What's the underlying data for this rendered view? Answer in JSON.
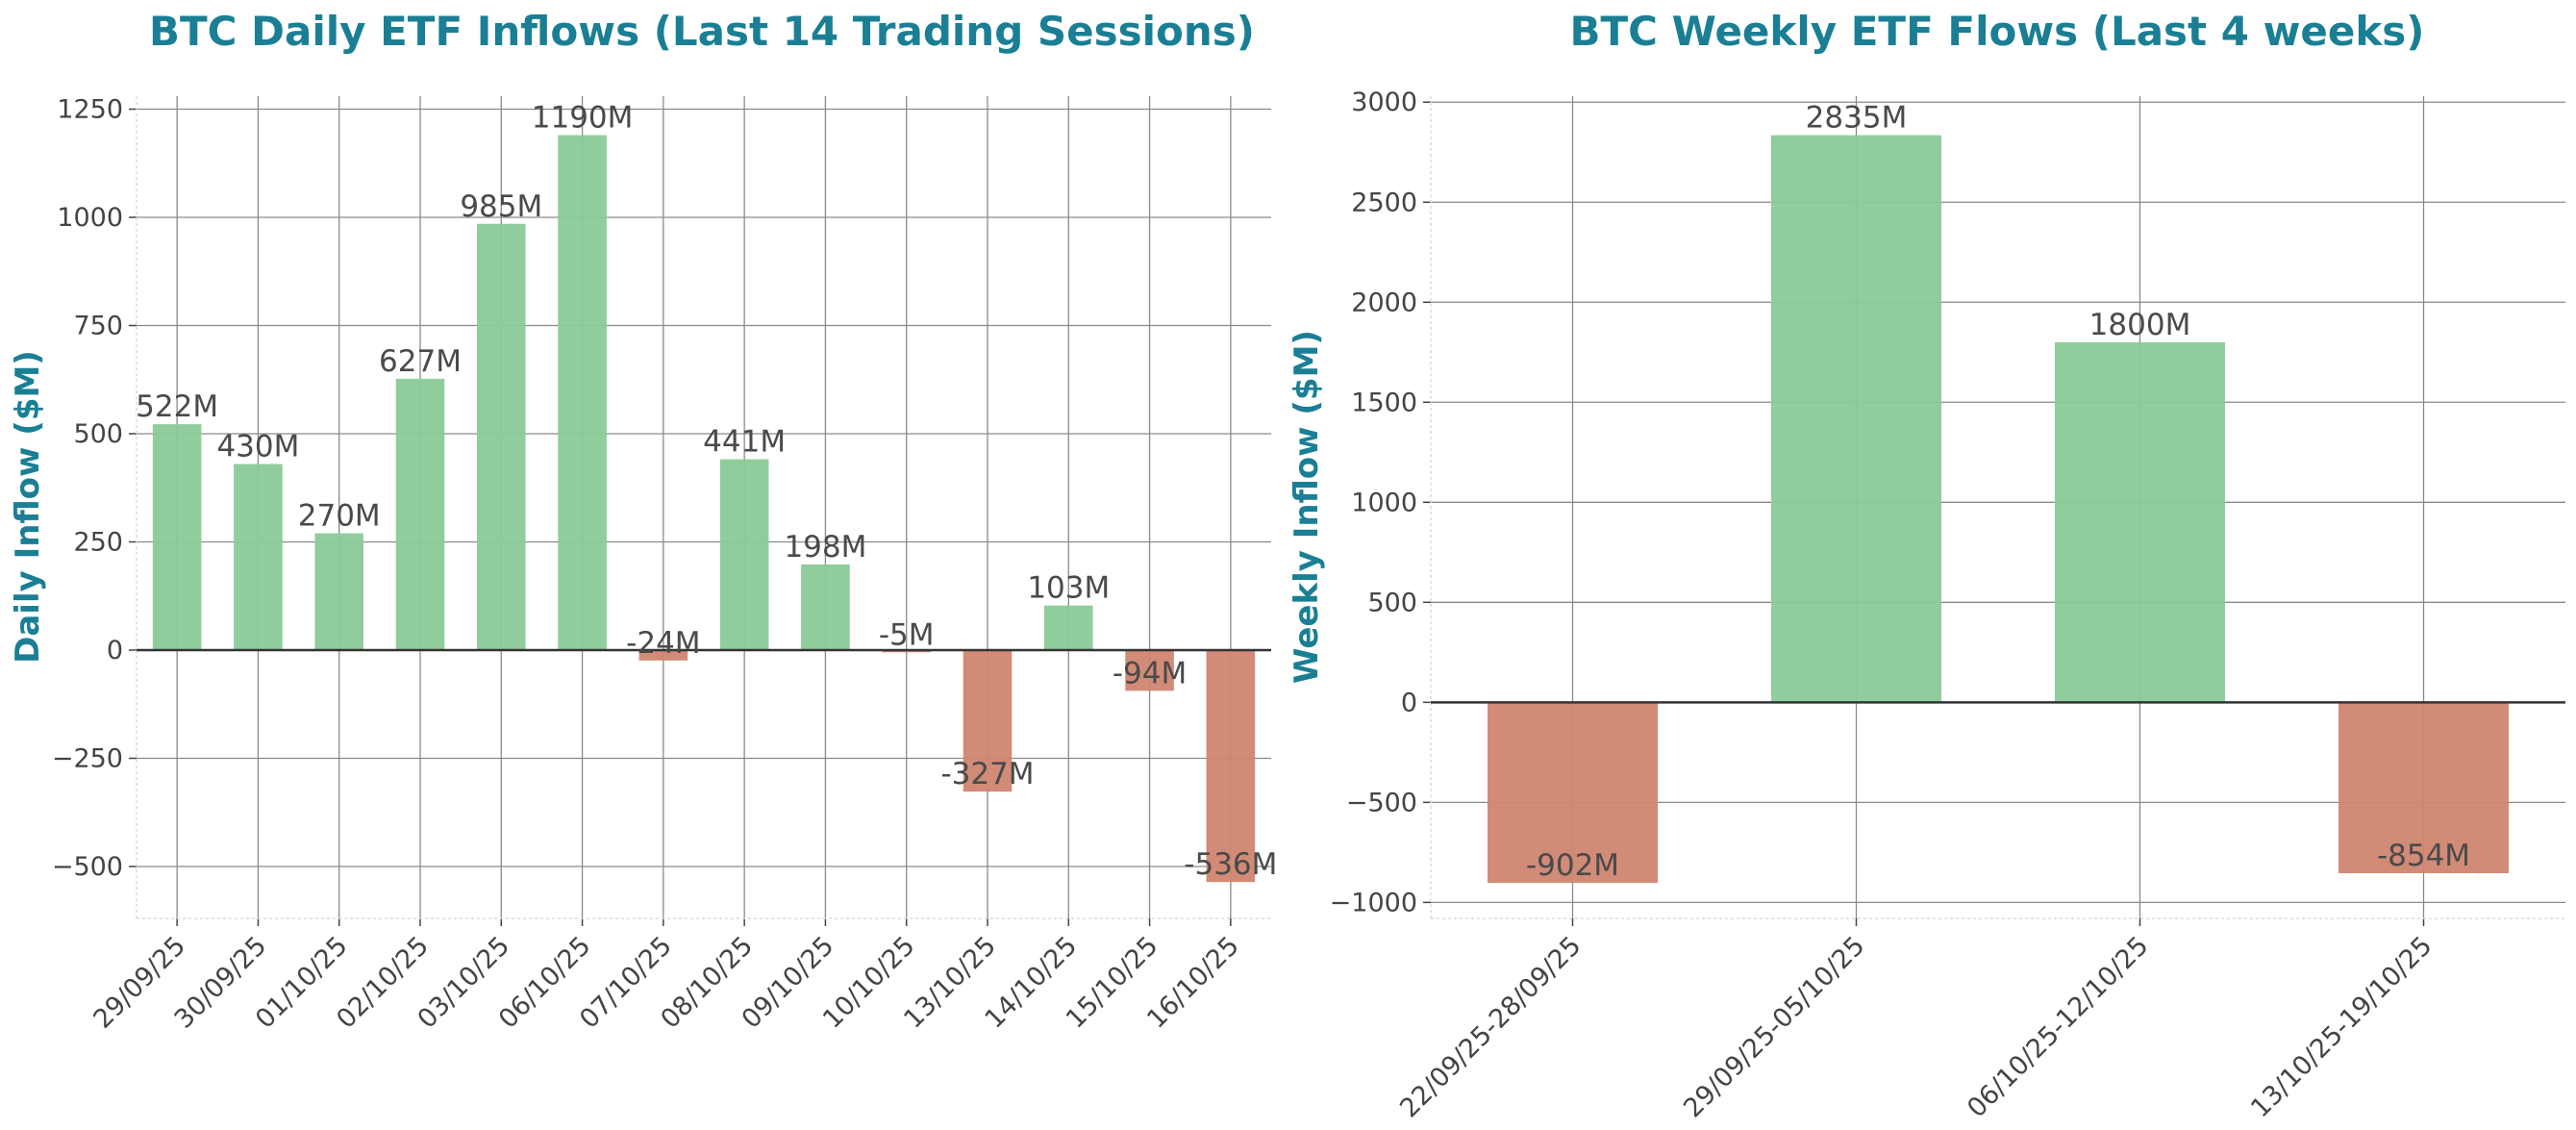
{
  "colors": {
    "title": "#1a7f94",
    "positive": "#8bca97",
    "negative": "#cf8570",
    "grid": "#8a8a8a",
    "zero_line": "#333333",
    "text": "#444444"
  },
  "chart_data": [
    {
      "type": "bar",
      "title": "BTC Daily ETF Inflows (Last 14 Trading Sessions)",
      "xlabel": "",
      "ylabel": "Daily Inflow ($M)",
      "categories": [
        "29/09/25",
        "30/09/25",
        "01/10/25",
        "02/10/25",
        "03/10/25",
        "06/10/25",
        "07/10/25",
        "08/10/25",
        "09/10/25",
        "10/10/25",
        "13/10/25",
        "14/10/25",
        "15/10/25",
        "16/10/25"
      ],
      "values": [
        522,
        430,
        270,
        627,
        985,
        1190,
        -24,
        441,
        198,
        -5,
        -327,
        103,
        -94,
        -536
      ],
      "data_labels": [
        "522M",
        "430M",
        "270M",
        "627M",
        "985M",
        "1190M",
        "-24M",
        "441M",
        "198M",
        "-5M",
        "-327M",
        "103M",
        "-94M",
        "-536M"
      ],
      "yticks": [
        -500,
        -250,
        0,
        250,
        500,
        750,
        1000,
        1250
      ],
      "ytick_labels": [
        "−500",
        "−250",
        "0",
        "250",
        "500",
        "750",
        "1000",
        "1250"
      ],
      "ylim": [
        -620,
        1280
      ],
      "grid": true
    },
    {
      "type": "bar",
      "title": "BTC Weekly ETF Flows (Last 4 weeks)",
      "xlabel": "",
      "ylabel": "Weekly Inflow ($M)",
      "categories": [
        "22/09/25-28/09/25",
        "29/09/25-05/10/25",
        "06/10/25-12/10/25",
        "13/10/25-19/10/25"
      ],
      "values": [
        -902,
        2835,
        1800,
        -854
      ],
      "data_labels": [
        "-902M",
        "2835M",
        "1800M",
        "-854M"
      ],
      "yticks": [
        -1000,
        -500,
        0,
        500,
        1000,
        1500,
        2000,
        2500,
        3000
      ],
      "ytick_labels": [
        "−1000",
        "−500",
        "0",
        "500",
        "1000",
        "1500",
        "2000",
        "2500",
        "3000"
      ],
      "ylim": [
        -1080,
        3030
      ],
      "grid": true
    }
  ]
}
